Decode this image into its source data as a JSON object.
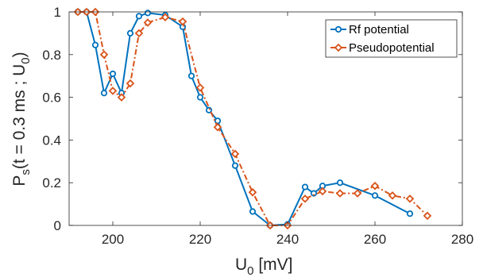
{
  "chart_data": {
    "type": "line",
    "xlabel": "U",
    "xlabel_sub": "0",
    "xlabel_unit": " [mV]",
    "ylabel_main": "P",
    "ylabel_sub": "s",
    "ylabel_rest_a": "(t = 0.3 ms ; U",
    "ylabel_rest_sub": "0",
    "ylabel_rest_b": ")",
    "xlim": [
      190,
      280
    ],
    "ylim": [
      0,
      1
    ],
    "x_ticks": [
      "200",
      "220",
      "240",
      "260",
      "280"
    ],
    "x_tick_values": [
      200,
      220,
      240,
      260,
      280
    ],
    "y_ticks": [
      "0",
      "0.2",
      "0.4",
      "0.6",
      "0.8",
      "1"
    ],
    "y_tick_values": [
      0,
      0.2,
      0.4,
      0.6,
      0.8,
      1
    ],
    "grid": false,
    "legend_position": "top-right",
    "series": [
      {
        "name": "Rf potential",
        "color": "#0072BD",
        "line_style": "solid",
        "marker": "circle",
        "x": [
          192,
          194,
          196,
          198,
          200,
          202,
          204,
          206,
          208,
          212,
          216,
          218,
          220,
          222,
          224,
          228,
          232,
          236,
          240,
          244,
          246,
          248,
          252,
          260,
          268
        ],
        "y": [
          1.0,
          1.0,
          0.845,
          0.62,
          0.71,
          0.62,
          0.9,
          0.98,
          0.995,
          0.985,
          0.93,
          0.7,
          0.6,
          0.54,
          0.49,
          0.28,
          0.065,
          0.0,
          0.005,
          0.18,
          0.15,
          0.185,
          0.2,
          0.14,
          0.055
        ]
      },
      {
        "name": "Pseudopotential",
        "color": "#D95319",
        "line_style": "dash-dot",
        "marker": "diamond",
        "x": [
          192,
          194,
          196,
          198,
          200,
          202,
          204,
          206,
          208,
          212,
          216,
          220,
          224,
          228,
          232,
          236,
          240,
          244,
          248,
          252,
          256,
          260,
          264,
          268,
          272
        ],
        "y": [
          1.0,
          1.0,
          1.0,
          0.8,
          0.63,
          0.6,
          0.665,
          0.9,
          0.95,
          0.975,
          0.955,
          0.645,
          0.46,
          0.335,
          0.155,
          0.0,
          0.0,
          0.125,
          0.16,
          0.15,
          0.15,
          0.185,
          0.14,
          0.125,
          0.045
        ]
      }
    ]
  }
}
